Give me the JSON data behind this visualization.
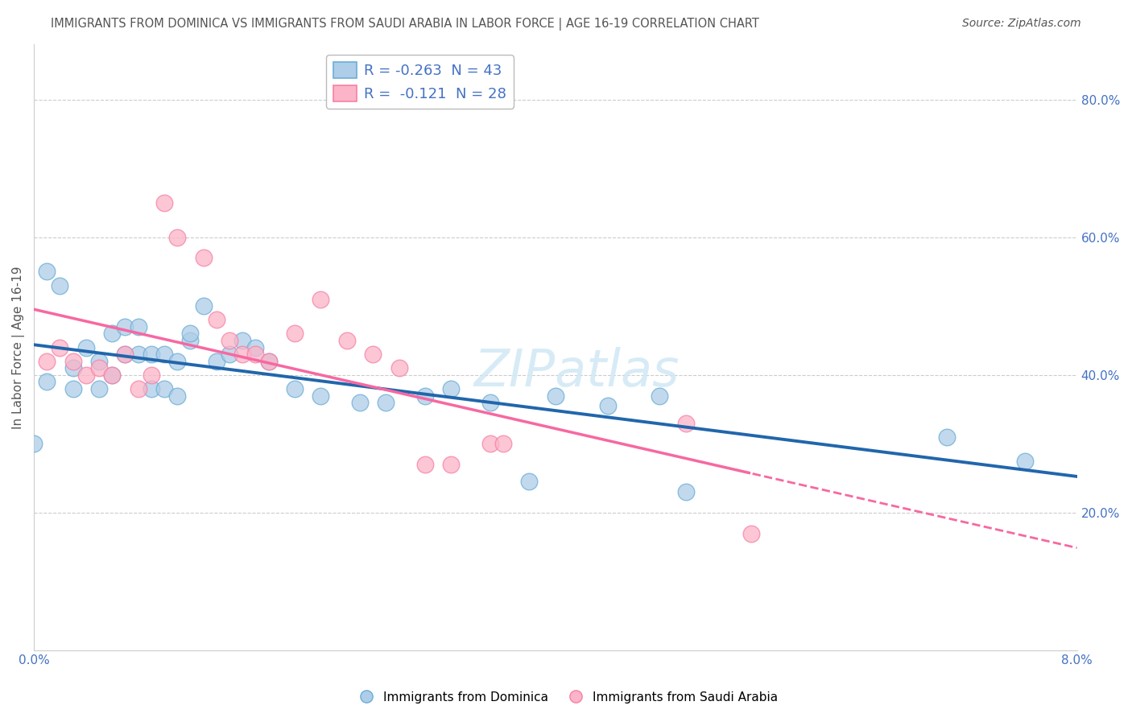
{
  "title": "IMMIGRANTS FROM DOMINICA VS IMMIGRANTS FROM SAUDI ARABIA IN LABOR FORCE | AGE 16-19 CORRELATION CHART",
  "source": "Source: ZipAtlas.com",
  "ylabel": "In Labor Force | Age 16-19",
  "legend1_text": "R = -0.263  N = 43",
  "legend2_text": "R =  -0.121  N = 28",
  "blue_scatter_color": "#aecde8",
  "blue_edge_color": "#6aaed6",
  "pink_scatter_color": "#fbb4c8",
  "pink_edge_color": "#f780a5",
  "blue_line_color": "#2166ac",
  "pink_line_color": "#f768a1",
  "grid_color": "#cccccc",
  "watermark_color": "#d0e8f5",
  "blue_x": [
    0.0,
    0.001,
    0.001,
    0.002,
    0.003,
    0.003,
    0.004,
    0.005,
    0.005,
    0.006,
    0.006,
    0.007,
    0.007,
    0.008,
    0.008,
    0.009,
    0.009,
    0.01,
    0.01,
    0.011,
    0.011,
    0.012,
    0.012,
    0.013,
    0.014,
    0.015,
    0.016,
    0.017,
    0.018,
    0.02,
    0.022,
    0.025,
    0.027,
    0.03,
    0.032,
    0.035,
    0.038,
    0.04,
    0.044,
    0.048,
    0.05,
    0.07,
    0.076
  ],
  "blue_y": [
    0.3,
    0.39,
    0.55,
    0.53,
    0.41,
    0.38,
    0.44,
    0.42,
    0.38,
    0.46,
    0.4,
    0.47,
    0.43,
    0.43,
    0.47,
    0.43,
    0.38,
    0.43,
    0.38,
    0.37,
    0.42,
    0.45,
    0.46,
    0.5,
    0.42,
    0.43,
    0.45,
    0.44,
    0.42,
    0.38,
    0.37,
    0.36,
    0.36,
    0.37,
    0.38,
    0.36,
    0.245,
    0.37,
    0.355,
    0.37,
    0.23,
    0.31,
    0.275
  ],
  "pink_x": [
    0.001,
    0.002,
    0.003,
    0.004,
    0.005,
    0.006,
    0.007,
    0.008,
    0.009,
    0.01,
    0.011,
    0.013,
    0.014,
    0.015,
    0.016,
    0.017,
    0.018,
    0.02,
    0.022,
    0.024,
    0.026,
    0.028,
    0.03,
    0.032,
    0.035,
    0.036,
    0.05,
    0.055
  ],
  "pink_y": [
    0.42,
    0.44,
    0.42,
    0.4,
    0.41,
    0.4,
    0.43,
    0.38,
    0.4,
    0.65,
    0.6,
    0.57,
    0.48,
    0.45,
    0.43,
    0.43,
    0.42,
    0.46,
    0.51,
    0.45,
    0.43,
    0.41,
    0.27,
    0.27,
    0.3,
    0.3,
    0.33,
    0.17
  ],
  "xlim": [
    0.0,
    0.08
  ],
  "ylim": [
    0.0,
    0.88
  ],
  "x_ticks": [
    0.0,
    0.08
  ],
  "y_ticks_right": [
    0.2,
    0.4,
    0.6,
    0.8
  ],
  "x_tick_labels": [
    "0.0%",
    "8.0%"
  ],
  "y_tick_labels_right": [
    "20.0%",
    "40.0%",
    "60.0%",
    "80.0%"
  ]
}
